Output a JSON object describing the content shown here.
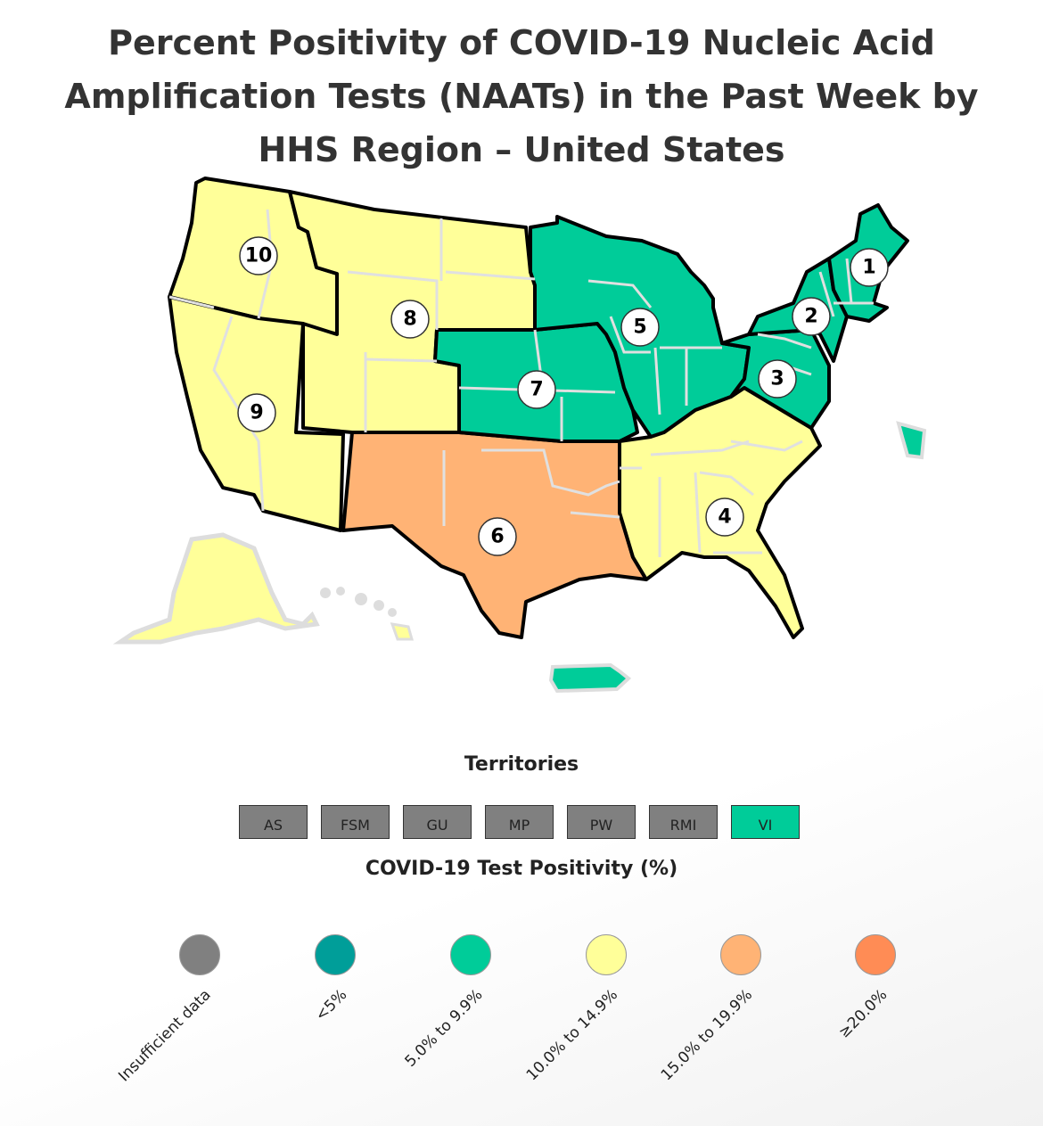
{
  "title": "Percent Positivity of COVID-19 Nucleic Acid Amplification Tests (NAATs) in the Past Week by HHS Region – United States",
  "map": {
    "regions": [
      {
        "number": "1",
        "category": "5.0% to 9.9%",
        "color": "#00cc99"
      },
      {
        "number": "2",
        "category": "5.0% to 9.9%",
        "color": "#00cc99"
      },
      {
        "number": "3",
        "category": "5.0% to 9.9%",
        "color": "#00cc99"
      },
      {
        "number": "4",
        "category": "10.0% to 14.9%",
        "color": "#ffff99"
      },
      {
        "number": "5",
        "category": "5.0% to 9.9%",
        "color": "#00cc99"
      },
      {
        "number": "6",
        "category": "15.0% to 19.9%",
        "color": "#ffb375"
      },
      {
        "number": "7",
        "category": "5.0% to 9.9%",
        "color": "#00cc99"
      },
      {
        "number": "8",
        "category": "10.0% to 14.9%",
        "color": "#ffff99"
      },
      {
        "number": "9",
        "category": "10.0% to 14.9%",
        "color": "#ffff99"
      },
      {
        "number": "10",
        "category": "10.0% to 14.9%",
        "color": "#ffff99"
      }
    ]
  },
  "territories": {
    "title": "Territories",
    "items": [
      {
        "label": "AS",
        "color": "#808080"
      },
      {
        "label": "FSM",
        "color": "#808080"
      },
      {
        "label": "GU",
        "color": "#808080"
      },
      {
        "label": "MP",
        "color": "#808080"
      },
      {
        "label": "PW",
        "color": "#808080"
      },
      {
        "label": "RMI",
        "color": "#808080"
      },
      {
        "label": "VI",
        "color": "#00cc99"
      }
    ]
  },
  "legend": {
    "title": "COVID-19 Test Positivity (%)",
    "items": [
      {
        "label": "Insufficient data",
        "color": "#808080"
      },
      {
        "label": "<5%",
        "color": "#009e99"
      },
      {
        "label": "5.0% to 9.9%",
        "color": "#00cc99"
      },
      {
        "label": "10.0% to 14.9%",
        "color": "#ffff99"
      },
      {
        "label": "15.0% to 19.9%",
        "color": "#ffb375"
      },
      {
        "label": "≥20.0%",
        "color": "#ff8c55"
      }
    ]
  }
}
